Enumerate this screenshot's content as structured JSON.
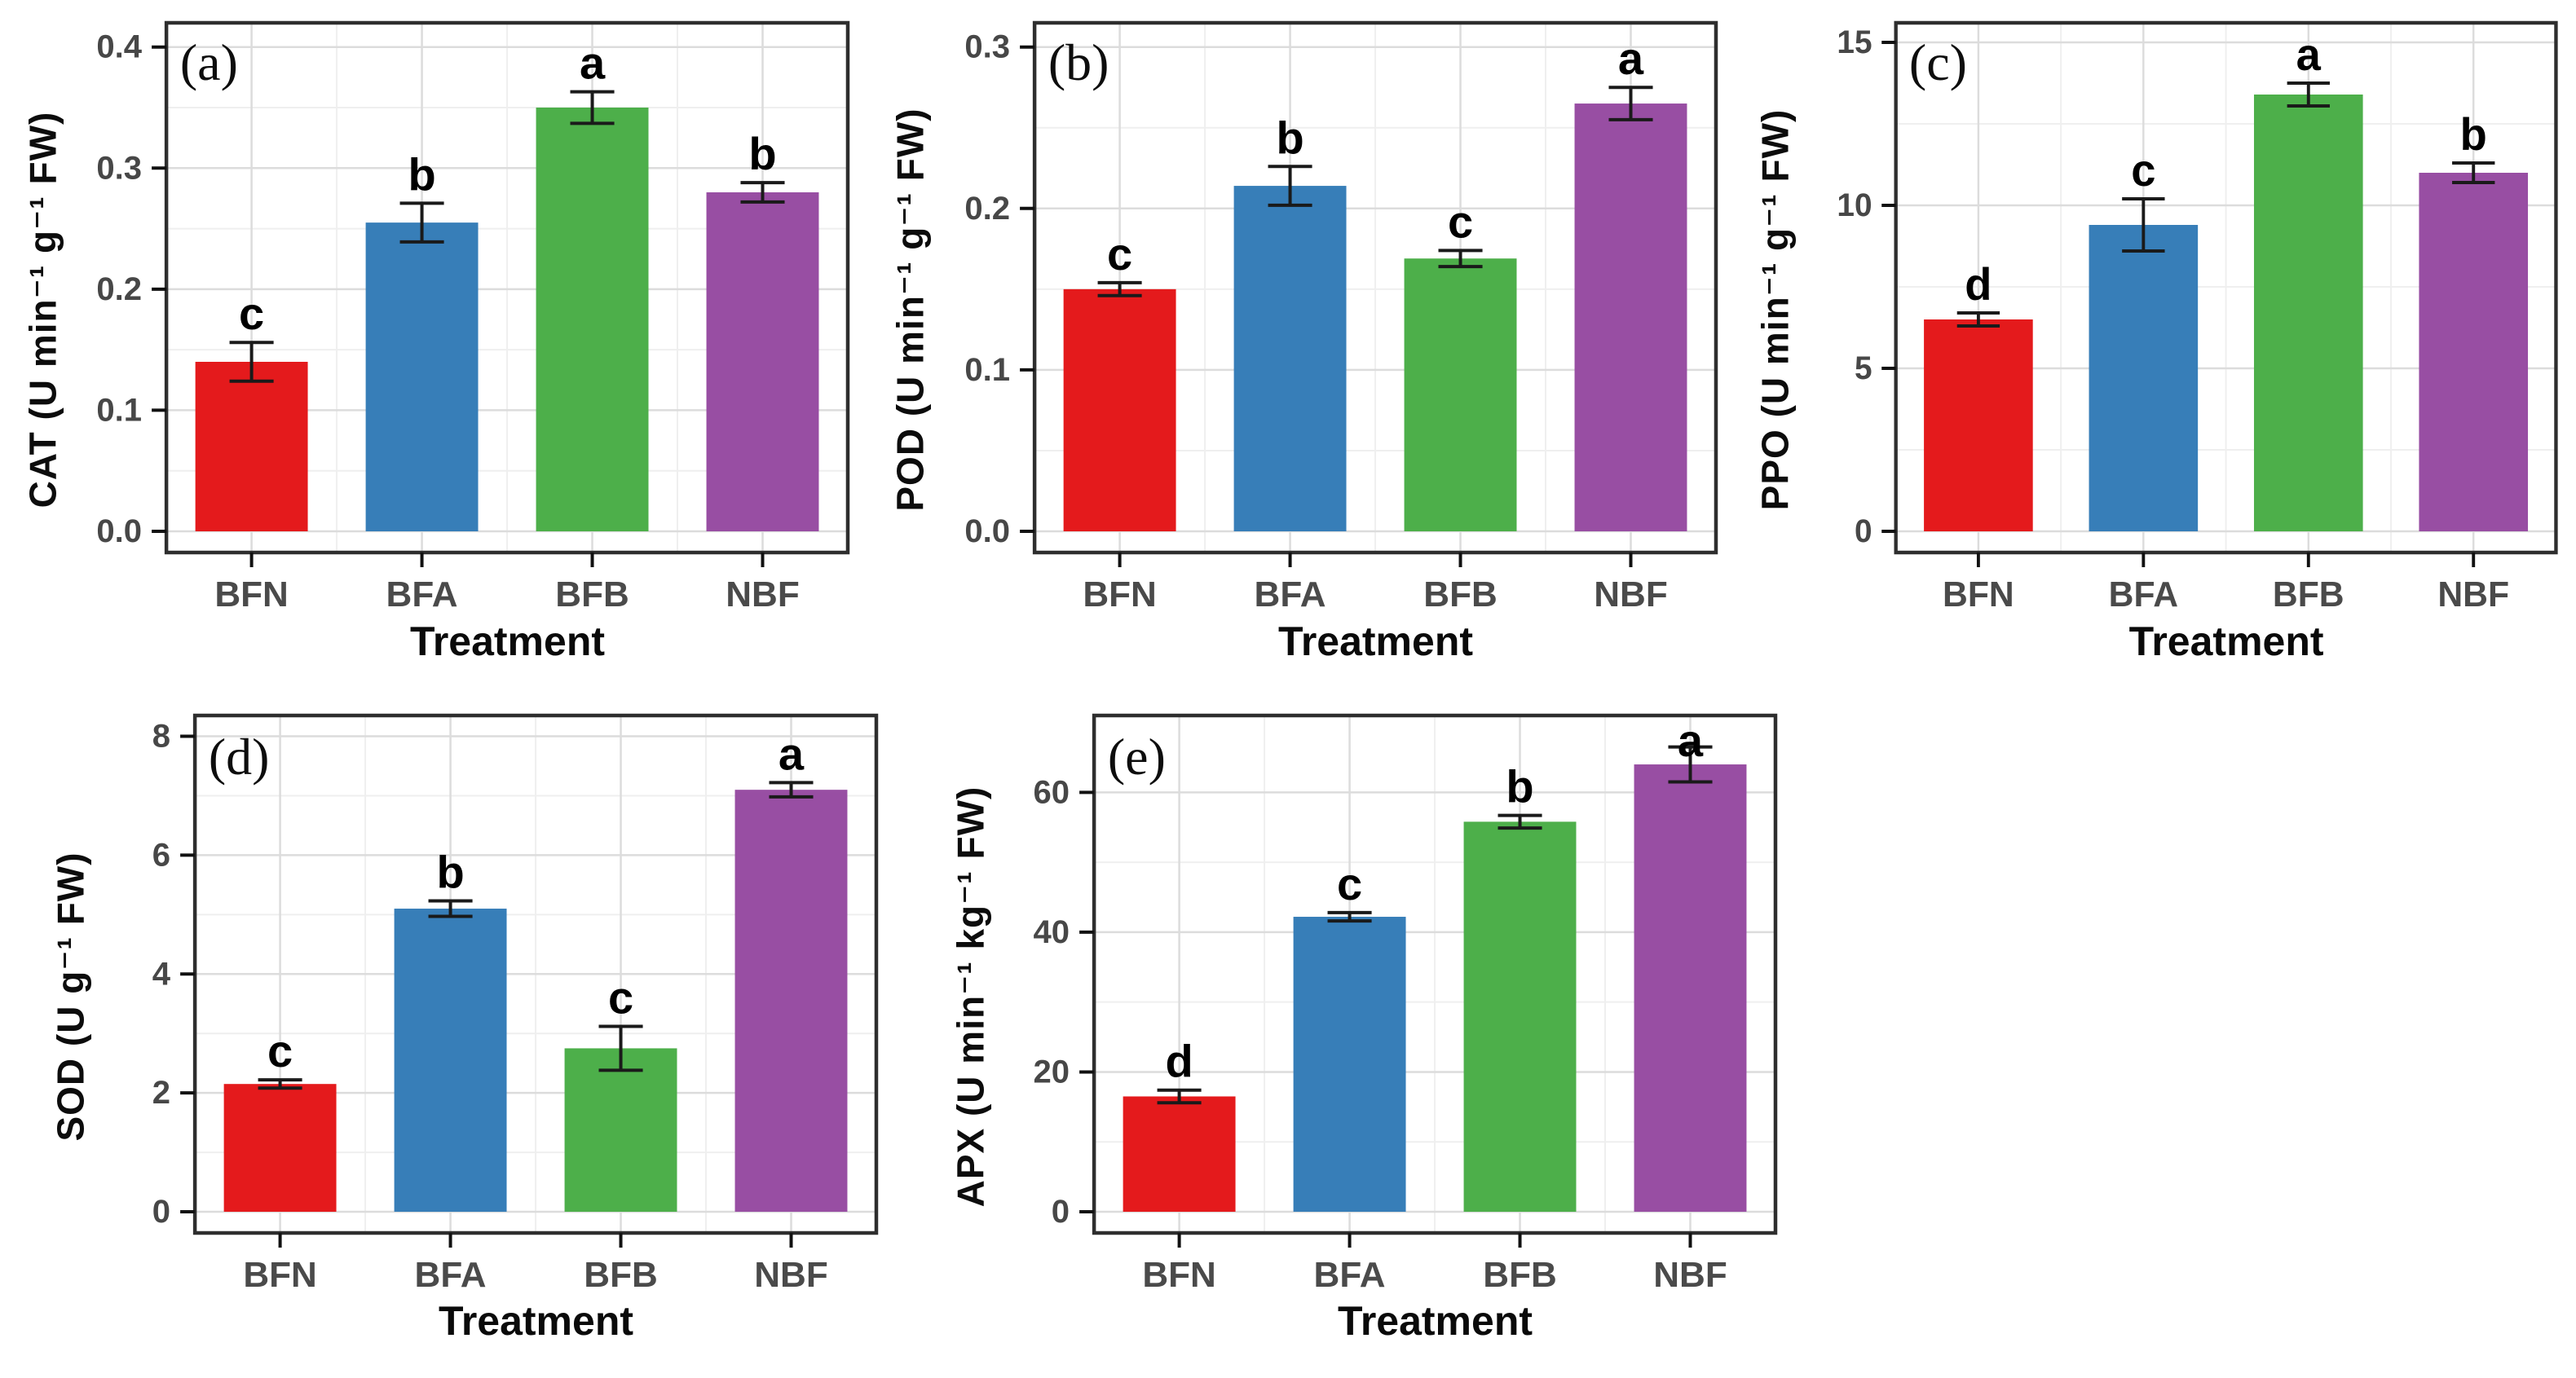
{
  "figure": {
    "background": "#ffffff",
    "frame_color": "#2e2e2e",
    "grid_major_color": "#dcdcdc",
    "grid_minor_color": "#efefef",
    "tick_label_color": "#474747",
    "category_label_color": "#4a4a4a",
    "error_bar_color": "#1a1a1a",
    "sig_letter_color": "#000000"
  },
  "bar_colors": [
    "#e41a1c",
    "#377eb8",
    "#4daf4a",
    "#984ea3"
  ],
  "chart_data": [
    {
      "type": "bar",
      "panel_label": "(a)",
      "xlabel": "Treatment",
      "ylabel": "CAT (U min⁻¹ g⁻¹  FW)",
      "categories": [
        "BFN",
        "BFA",
        "BFB",
        "NBF"
      ],
      "values": [
        0.14,
        0.255,
        0.35,
        0.28
      ],
      "errors": [
        0.016,
        0.016,
        0.013,
        0.008
      ],
      "sig_letters": [
        "c",
        "b",
        "a",
        "b"
      ],
      "yticks": [
        0,
        0.1,
        0.2,
        0.3,
        0.4
      ],
      "ytick_labels": [
        "0.0",
        "0.1",
        "0.2",
        "0.3",
        "0.4"
      ],
      "ylim": [
        0,
        0.42
      ],
      "grid": true,
      "legend": "none"
    },
    {
      "type": "bar",
      "panel_label": "(b)",
      "xlabel": "Treatment",
      "ylabel": "POD (U min⁻¹ g⁻¹  FW)",
      "categories": [
        "BFN",
        "BFA",
        "BFB",
        "NBF"
      ],
      "values": [
        0.15,
        0.214,
        0.169,
        0.265
      ],
      "errors": [
        0.004,
        0.012,
        0.005,
        0.01
      ],
      "sig_letters": [
        "c",
        "b",
        "c",
        "a"
      ],
      "yticks": [
        0,
        0.1,
        0.2,
        0.3
      ],
      "ytick_labels": [
        "0.0",
        "0.1",
        "0.2",
        "0.3"
      ],
      "ylim": [
        0,
        0.315
      ],
      "grid": true,
      "legend": "none"
    },
    {
      "type": "bar",
      "panel_label": "(c)",
      "xlabel": "Treatment",
      "ylabel": "PPO (U min⁻¹ g⁻¹  FW)",
      "categories": [
        "BFN",
        "BFA",
        "BFB",
        "NBF"
      ],
      "values": [
        6.5,
        9.4,
        13.4,
        11.0
      ],
      "errors": [
        0.2,
        0.8,
        0.35,
        0.3
      ],
      "sig_letters": [
        "d",
        "c",
        "a",
        "b"
      ],
      "yticks": [
        0,
        5,
        10,
        15
      ],
      "ytick_labels": [
        "0",
        "5",
        "10",
        "15"
      ],
      "ylim": [
        0,
        15.6
      ],
      "grid": true,
      "legend": "none"
    },
    {
      "type": "bar",
      "panel_label": "(d)",
      "xlabel": "Treatment",
      "ylabel": "SOD (U g⁻¹  FW)",
      "categories": [
        "BFN",
        "BFA",
        "BFB",
        "NBF"
      ],
      "values": [
        2.15,
        5.1,
        2.75,
        7.1
      ],
      "errors": [
        0.07,
        0.13,
        0.37,
        0.12
      ],
      "sig_letters": [
        "c",
        "b",
        "c",
        "a"
      ],
      "yticks": [
        0,
        2,
        4,
        6,
        8
      ],
      "ytick_labels": [
        "0",
        "2",
        "4",
        "6",
        "8"
      ],
      "ylim": [
        0,
        8.35
      ],
      "grid": true,
      "legend": "none"
    },
    {
      "type": "bar",
      "panel_label": "(e)",
      "xlabel": "Treatment",
      "ylabel": "APX (U min⁻¹ kg⁻¹  FW)",
      "categories": [
        "BFN",
        "BFA",
        "BFB",
        "NBF"
      ],
      "values": [
        16.5,
        42.2,
        55.8,
        64.0
      ],
      "errors": [
        0.9,
        0.6,
        0.9,
        2.5
      ],
      "sig_letters": [
        "d",
        "c",
        "b",
        "a"
      ],
      "yticks": [
        0,
        20,
        40,
        60
      ],
      "ytick_labels": [
        "0",
        "20",
        "40",
        "60"
      ],
      "ylim": [
        0,
        71
      ],
      "grid": true,
      "legend": "none"
    }
  ]
}
